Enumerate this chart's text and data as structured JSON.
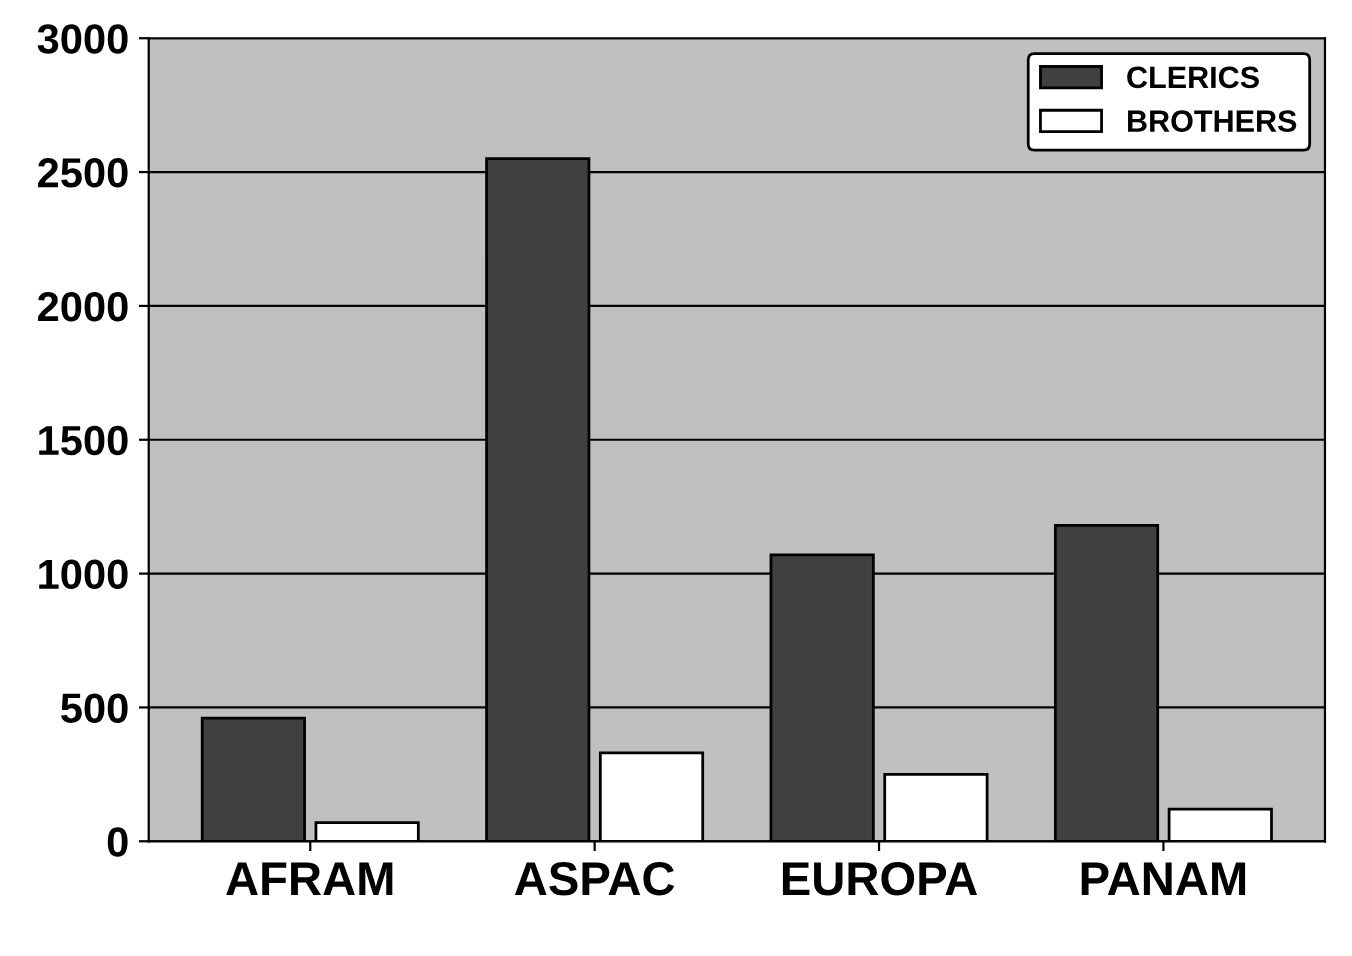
{
  "chart_data": {
    "type": "bar",
    "categories": [
      "AFRAM",
      "ASPAC",
      "EUROPA",
      "PANAM"
    ],
    "series": [
      {
        "name": "CLERICS",
        "color": "#404040",
        "values": [
          460,
          2550,
          1070,
          1180
        ]
      },
      {
        "name": "BROTHERS",
        "color": "#ffffff",
        "values": [
          70,
          330,
          250,
          120
        ]
      }
    ],
    "ylim": [
      0,
      3000
    ],
    "yticks": [
      0,
      500,
      1000,
      1500,
      2000,
      2500,
      3000
    ],
    "grid": "y",
    "legend": "top right"
  }
}
